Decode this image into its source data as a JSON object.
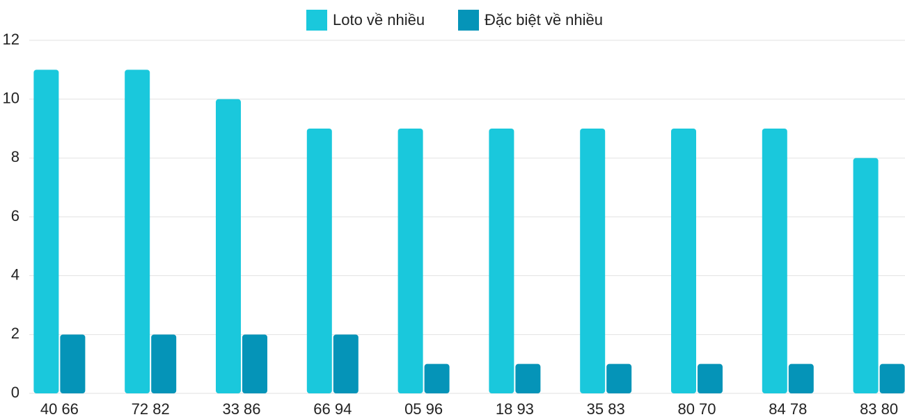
{
  "chart_data": {
    "type": "bar",
    "categories": [
      "40 66",
      "72 82",
      "33 86",
      "66 94",
      "05 96",
      "18 93",
      "35 83",
      "80 70",
      "84 78",
      "83 80"
    ],
    "series": [
      {
        "name": "Loto về nhiều",
        "color": "#1ac8dc",
        "values": [
          11,
          11,
          10,
          9,
          9,
          9,
          9,
          9,
          9,
          8
        ]
      },
      {
        "name": "Đặc biệt về nhiều",
        "color": "#0594b8",
        "values": [
          2,
          2,
          2,
          2,
          1,
          1,
          1,
          1,
          1,
          1
        ]
      }
    ],
    "ylim": [
      0,
      12
    ],
    "yticks": [
      0,
      2,
      4,
      6,
      8,
      10,
      12
    ],
    "grid": true,
    "legend": "top"
  }
}
